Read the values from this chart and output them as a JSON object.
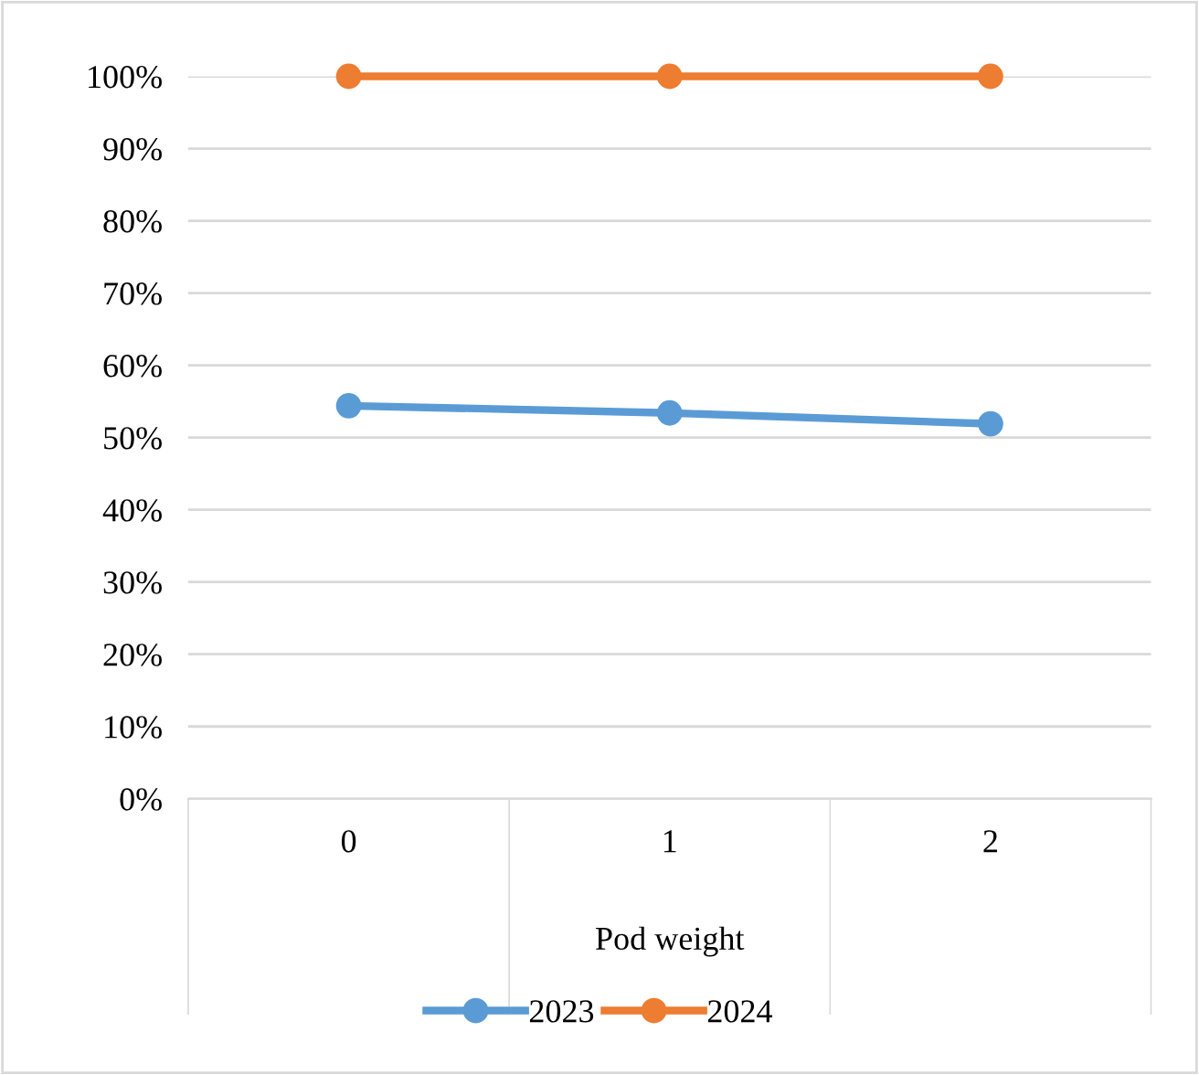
{
  "chart_data": {
    "type": "line",
    "xlabel": "Pod weight",
    "categories": [
      "0",
      "1",
      "2"
    ],
    "series": [
      {
        "name": "2023",
        "color": "#5b9bd5",
        "values": [
          54.4,
          53.4,
          51.9
        ]
      },
      {
        "name": "2024",
        "color": "#ed7d31",
        "values": [
          100,
          100,
          100
        ]
      }
    ],
    "ylim": [
      0,
      100
    ],
    "yticks": [
      {
        "value": 0,
        "label": "0%"
      },
      {
        "value": 10,
        "label": "10%"
      },
      {
        "value": 20,
        "label": "20%"
      },
      {
        "value": 30,
        "label": "30%"
      },
      {
        "value": 40,
        "label": "40%"
      },
      {
        "value": 50,
        "label": "50%"
      },
      {
        "value": 60,
        "label": "60%"
      },
      {
        "value": 70,
        "label": "70%"
      },
      {
        "value": 80,
        "label": "80%"
      },
      {
        "value": 90,
        "label": "90%"
      },
      {
        "value": 100,
        "label": "100%"
      }
    ],
    "grid": "y",
    "legend": "bottom",
    "marker": "circle",
    "line_style": "solid"
  }
}
